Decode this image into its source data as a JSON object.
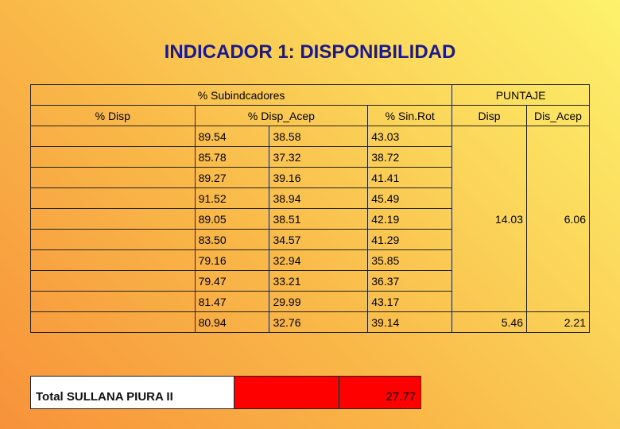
{
  "title": "INDICADOR 1: DISPONIBILIDAD",
  "header": {
    "group_sub": "% Subindcadores",
    "group_puntaje": "PUNTAJE",
    "col_disp": "% Disp",
    "col_disp_acep": "% Disp_Acep",
    "col_sinrot": "% Sin.Rot",
    "col_p_disp": "Disp",
    "col_p_dis_acep": "Dis_Acep"
  },
  "rows": [
    [
      "89.54",
      "38.58",
      "43.03"
    ],
    [
      "85.78",
      "37.32",
      "38.72"
    ],
    [
      "89.27",
      "39.16",
      "41.41"
    ],
    [
      "91.52",
      "38.94",
      "45.49"
    ],
    [
      "89.05",
      "38.51",
      "42.19"
    ],
    [
      "83.50",
      "34.57",
      "41.29"
    ],
    [
      "79.16",
      "32.94",
      "35.85"
    ],
    [
      "79.47",
      "33.21",
      "36.37"
    ],
    [
      "81.47",
      "29.99",
      "43.17"
    ],
    [
      "80.94",
      "32.76",
      "39.14"
    ]
  ],
  "puntaje": {
    "group1_disp": "14.03",
    "group1_dis_acep": "6.06",
    "group2_disp": "5.46",
    "group2_dis_acep": "2.21"
  },
  "total": {
    "label": "Total SULLANA PIURA II",
    "value": "27.77"
  }
}
